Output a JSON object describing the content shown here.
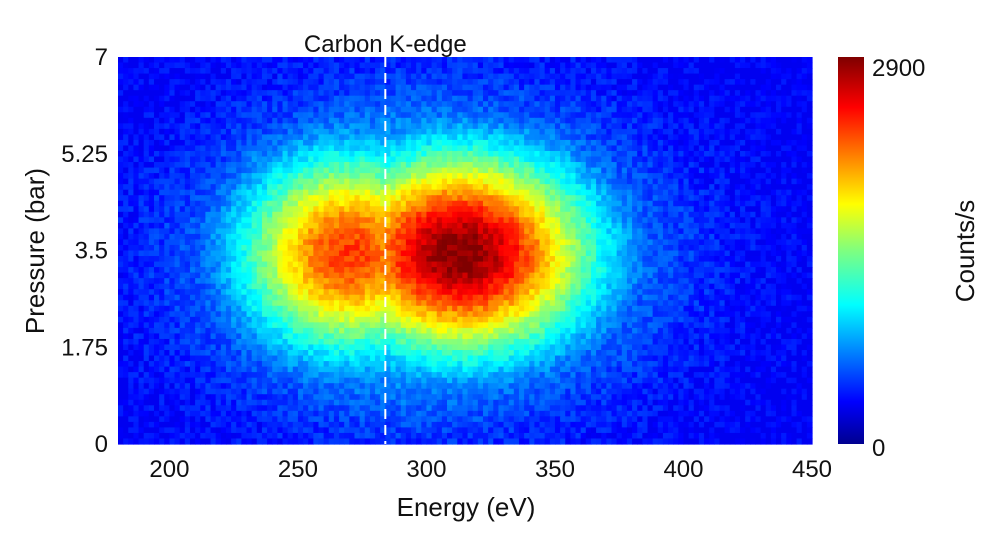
{
  "chart_data": {
    "type": "heatmap",
    "title": "",
    "xlabel": "Energy (eV)",
    "ylabel": "Pressure (bar)",
    "xlim": [
      180,
      450
    ],
    "ylim": [
      0,
      7
    ],
    "x_ticks": [
      200,
      250,
      300,
      350,
      400,
      450
    ],
    "y_ticks": [
      0,
      1.75,
      3.5,
      5.25,
      7
    ],
    "x_tick_labels": [
      "200",
      "250",
      "300",
      "350",
      "400",
      "450"
    ],
    "y_tick_labels": [
      "0",
      "1.75",
      "3.5",
      "5.25",
      "7"
    ],
    "colormap": "jet",
    "colorbar": {
      "label": "Counts/s",
      "min": 0,
      "max": 2900,
      "min_label": "0",
      "max_label": "2900"
    },
    "annotation": {
      "text": "Carbon K-edge",
      "x": 284,
      "line_style": "dashed",
      "line_color": "#ffffff"
    },
    "intensity_peaks": [
      {
        "energy": 272,
        "pressure": 3.45,
        "counts": 2350
      },
      {
        "energy": 312,
        "pressure": 3.4,
        "counts": 2900
      }
    ],
    "background_counts": 0,
    "grid": false
  }
}
